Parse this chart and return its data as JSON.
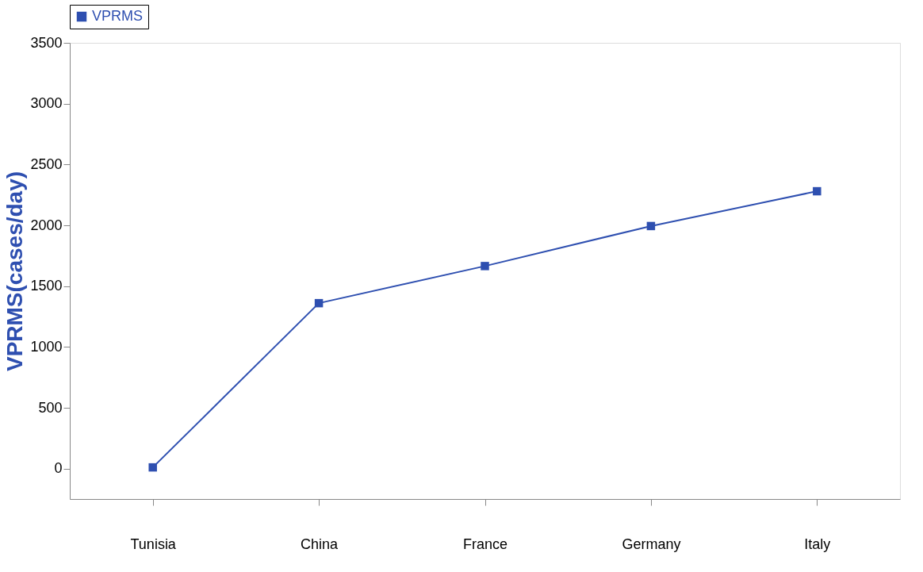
{
  "chart_data": {
    "type": "line",
    "ylabel": "VPRMS(cases/day)",
    "categories": [
      "Tunisia",
      "China",
      "France",
      "Germany",
      "Italy"
    ],
    "series": [
      {
        "name": "VPRMS",
        "color": "#2e4fb0",
        "values": [
          10,
          1360,
          1665,
          1994,
          2280
        ]
      }
    ],
    "ylim": [
      -250,
      3500
    ],
    "yticks": [
      0,
      500,
      1000,
      1500,
      2000,
      2500,
      3000,
      3500
    ],
    "grid": false,
    "legend": "top",
    "marker": "square",
    "line_style": "solid"
  }
}
